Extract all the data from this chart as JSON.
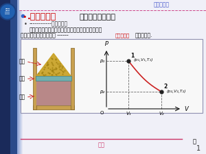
{
  "slide_bg": "#e8eaf5",
  "content_bg": "#f0f0f8",
  "sidebar_dark": "#1a2a5a",
  "sidebar_mid": "#2a4a8a",
  "sidebar_light": "#4a70c0",
  "header_text": "热力学基础",
  "header_color": "#4455cc",
  "header_line_color": "#cc4488",
  "footer_text": "热学",
  "footer_color": "#cc3366",
  "footer_line_color": "#cc3366",
  "page_num": "1",
  "title_red_part": ".准静态过程",
  "title_black_part": "（理想化的过程）",
  "title_red": "#cc0000",
  "title_black": "#111111",
  "title_fontsize": 9,
  "sub_dashes": "------------",
  "sub_text": "热力学过程",
  "body1": "从一个平衡态到另一平衡态所经过的每一中间状态均",
  "body2_black1": "可近似当作平衡态的过程",
  "body2_dashes": " ------",
  "body2_red": "准静态过程",
  "body2_black2": "即平衡过稍.",
  "box_bg": "#f8f8f8",
  "box_border": "#9090b0",
  "cyl_wall": "#c8a050",
  "cyl_border": "#806020",
  "sand_color": "#c8a020",
  "sand_dark": "#a08010",
  "piston_color": "#70b0b0",
  "piston_border": "#408080",
  "gas_color": "#b88888",
  "arrow_color": "#cc2222",
  "label_color": "#111111",
  "graph_dot_color": "#222222",
  "graph_line_color": "#cc2222",
  "graph_dash_color": "#666666",
  "graph_axis_color": "#111111"
}
